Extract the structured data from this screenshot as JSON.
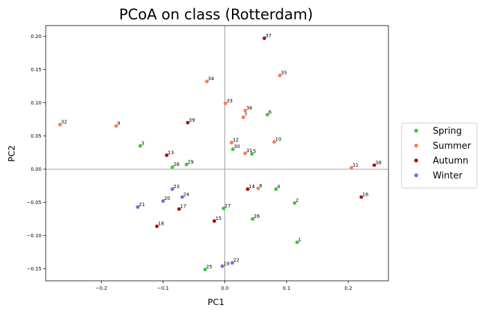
{
  "chart_data": {
    "type": "scatter",
    "title": "PCoA on class (Rotterdam)",
    "xlabel": "PC1",
    "ylabel": "PC2",
    "xlim": [
      -0.29,
      0.265
    ],
    "ylim": [
      -0.168,
      0.216
    ],
    "xticks": [
      -0.2,
      -0.1,
      0.0,
      0.1,
      0.2
    ],
    "xtick_labels": [
      "−0.2",
      "−0.1",
      "0.0",
      "0.1",
      "0.2"
    ],
    "yticks": [
      -0.15,
      -0.1,
      -0.05,
      0.0,
      0.05,
      0.1,
      0.15,
      0.2
    ],
    "ytick_labels": [
      "−0.15",
      "−0.10",
      "−0.05",
      "0.00",
      "0.05",
      "0.10",
      "0.15",
      "0.20"
    ],
    "zero_lines": true,
    "grid": false,
    "legend_position": "outside-right",
    "series": [
      {
        "name": "Spring",
        "color": "#33cc33",
        "points": [
          {
            "label": "1",
            "x": 0.117,
            "y": -0.11
          },
          {
            "label": "2",
            "x": 0.113,
            "y": -0.051
          },
          {
            "label": "3",
            "x": -0.137,
            "y": 0.035
          },
          {
            "label": "4",
            "x": 0.083,
            "y": -0.03
          },
          {
            "label": "5",
            "x": 0.044,
            "y": 0.023
          },
          {
            "label": "6",
            "x": 0.069,
            "y": 0.082
          },
          {
            "label": "25",
            "x": -0.032,
            "y": -0.151
          },
          {
            "label": "26",
            "x": 0.045,
            "y": -0.075
          },
          {
            "label": "27",
            "x": -0.002,
            "y": -0.059
          },
          {
            "label": "28",
            "x": -0.085,
            "y": 0.003
          },
          {
            "label": "29",
            "x": -0.062,
            "y": 0.007
          },
          {
            "label": "30",
            "x": 0.013,
            "y": 0.03
          }
        ]
      },
      {
        "name": "Summer",
        "color": "#ff7755",
        "points": [
          {
            "label": "7",
            "x": 0.03,
            "y": 0.078
          },
          {
            "label": "8",
            "x": 0.054,
            "y": -0.029
          },
          {
            "label": "9",
            "x": -0.176,
            "y": 0.065
          },
          {
            "label": "10",
            "x": 0.08,
            "y": 0.041
          },
          {
            "label": "11",
            "x": 0.205,
            "y": 0.002
          },
          {
            "label": "12",
            "x": 0.011,
            "y": 0.04
          },
          {
            "label": "31",
            "x": 0.033,
            "y": 0.024
          },
          {
            "label": "32",
            "x": -0.267,
            "y": 0.067
          },
          {
            "label": "33",
            "x": 0.001,
            "y": 0.099
          },
          {
            "label": "34",
            "x": -0.029,
            "y": 0.132
          },
          {
            "label": "35",
            "x": 0.089,
            "y": 0.141
          },
          {
            "label": "36",
            "x": 0.033,
            "y": 0.088
          }
        ]
      },
      {
        "name": "Autumn",
        "color": "#aa1111",
        "points": [
          {
            "label": "13",
            "x": -0.094,
            "y": 0.021
          },
          {
            "label": "14",
            "x": 0.037,
            "y": -0.03
          },
          {
            "label": "15",
            "x": -0.017,
            "y": -0.078
          },
          {
            "label": "16",
            "x": 0.221,
            "y": -0.042
          },
          {
            "label": "17",
            "x": -0.074,
            "y": -0.06
          },
          {
            "label": "18",
            "x": -0.11,
            "y": -0.086
          },
          {
            "label": "37",
            "x": 0.064,
            "y": 0.197
          },
          {
            "label": "38",
            "x": 0.242,
            "y": 0.006
          },
          {
            "label": "39",
            "x": -0.06,
            "y": 0.07
          }
        ]
      },
      {
        "name": "Winter",
        "color": "#7766ee",
        "points": [
          {
            "label": "19",
            "x": -0.004,
            "y": -0.146
          },
          {
            "label": "20",
            "x": -0.1,
            "y": -0.048
          },
          {
            "label": "21",
            "x": -0.141,
            "y": -0.057
          },
          {
            "label": "22",
            "x": 0.012,
            "y": -0.141
          },
          {
            "label": "23",
            "x": -0.085,
            "y": -0.03
          },
          {
            "label": "24",
            "x": -0.069,
            "y": -0.042
          }
        ]
      }
    ]
  }
}
